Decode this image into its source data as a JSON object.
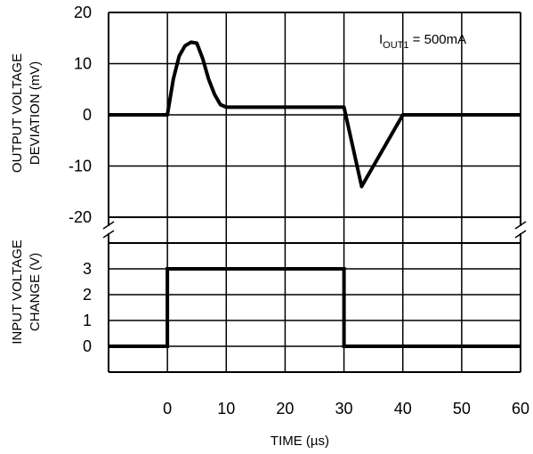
{
  "chart_data": {
    "type": "line",
    "x_label": "TIME (µs)",
    "x_ticks": [
      0,
      10,
      20,
      30,
      40,
      50,
      60
    ],
    "xlim": [
      -10,
      60
    ],
    "annotation": {
      "prefix": "I",
      "subscript": "OUT1",
      "suffix": " = 500mA"
    },
    "top": {
      "ylabel_lines": [
        "OUTPUT VOLTAGE",
        "DEVIATION (mV)"
      ],
      "y_ticks": [
        20,
        10,
        0,
        -10,
        -20
      ],
      "ylim": [
        -20,
        20
      ],
      "series": [
        {
          "x": [
            -10,
            0,
            1,
            2,
            3,
            4,
            5,
            6,
            7,
            8,
            9,
            10,
            30,
            33,
            40,
            60
          ],
          "y": [
            0,
            0,
            7,
            11.5,
            13.5,
            14.2,
            14,
            11,
            7,
            4,
            2,
            1.5,
            1.5,
            -14,
            0,
            0
          ]
        }
      ]
    },
    "bottom": {
      "ylabel_lines": [
        "INPUT VOLTAGE",
        "CHANGE (V)"
      ],
      "y_ticks": [
        3,
        2,
        1,
        0
      ],
      "ylim": [
        -1,
        4
      ],
      "series": [
        {
          "x": [
            -10,
            0,
            0,
            30,
            30,
            60
          ],
          "y": [
            0,
            0,
            3,
            3,
            0,
            0
          ]
        }
      ]
    }
  }
}
